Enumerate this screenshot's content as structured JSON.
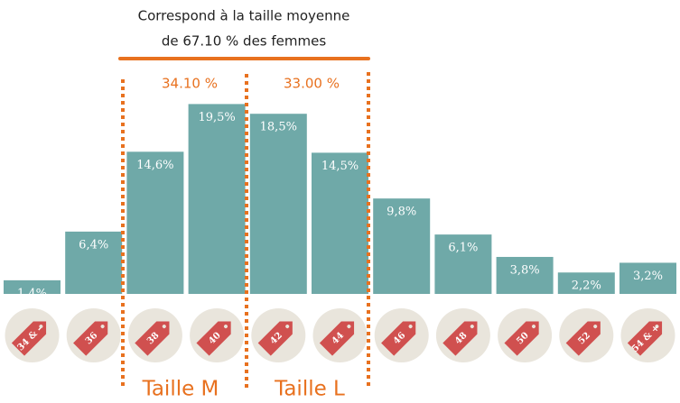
{
  "chart_data": {
    "type": "bar",
    "title_lines": [
      "Correspond à la taille moyenne",
      "de 67.10 % des femmes"
    ],
    "categories": [
      "34 & -",
      "36",
      "38",
      "40",
      "42",
      "44",
      "46",
      "48",
      "50",
      "52",
      "54 & +"
    ],
    "values": [
      1.4,
      6.4,
      14.6,
      19.5,
      18.5,
      14.5,
      9.8,
      6.1,
      3.8,
      2.2,
      3.2
    ],
    "value_labels": [
      "1,4%",
      "6,4%",
      "14,6%",
      "19,5%",
      "18,5%",
      "14,5%",
      "9,8%",
      "6,1%",
      "3,8%",
      "2,2%",
      "3,2%"
    ],
    "color": "#6fa9a8",
    "group_shares": [
      "34.10 %",
      "33.00 %"
    ],
    "group_labels": [
      "Taille M",
      "Taille L"
    ]
  }
}
